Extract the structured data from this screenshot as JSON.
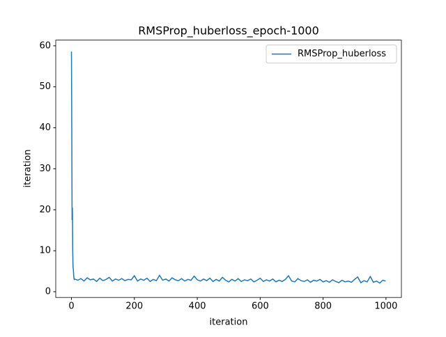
{
  "chart_data": {
    "type": "line",
    "title": "RMSProp_huberloss_epoch-1000",
    "x_label": "iteration",
    "y_label": "iteration",
    "x": [
      0,
      1,
      2,
      3,
      4,
      5,
      6,
      7,
      8,
      9,
      10,
      20,
      30,
      40,
      50,
      60,
      70,
      80,
      90,
      100,
      110,
      120,
      130,
      140,
      150,
      160,
      170,
      180,
      190,
      200,
      210,
      220,
      230,
      240,
      250,
      260,
      270,
      280,
      290,
      300,
      310,
      320,
      330,
      340,
      350,
      360,
      370,
      380,
      390,
      400,
      410,
      420,
      430,
      440,
      450,
      460,
      470,
      480,
      490,
      500,
      510,
      520,
      530,
      540,
      550,
      560,
      570,
      580,
      590,
      600,
      610,
      620,
      630,
      640,
      650,
      660,
      670,
      680,
      690,
      700,
      710,
      720,
      730,
      740,
      750,
      760,
      770,
      780,
      790,
      800,
      810,
      820,
      830,
      840,
      850,
      860,
      870,
      880,
      890,
      900,
      910,
      920,
      930,
      940,
      950,
      960,
      970,
      980,
      990,
      999
    ],
    "series": [
      {
        "name": "RMSProp_huberloss",
        "color": "#1f77b4",
        "values": [
          58.6,
          40,
          17.5,
          20.5,
          10,
          6,
          5.5,
          4,
          3.2,
          3.0,
          3.1,
          2.8,
          3.2,
          2.6,
          3.4,
          2.9,
          3.1,
          2.5,
          3.3,
          2.7,
          3.0,
          3.5,
          2.6,
          3.1,
          2.8,
          3.2,
          2.7,
          3.0,
          2.9,
          3.9,
          2.6,
          3.1,
          2.8,
          3.3,
          2.5,
          3.0,
          2.7,
          4.0,
          2.8,
          3.1,
          2.6,
          3.4,
          2.9,
          2.7,
          3.2,
          2.6,
          3.0,
          2.8,
          3.8,
          2.9,
          2.6,
          3.1,
          2.7,
          3.3,
          2.5,
          3.0,
          2.6,
          3.5,
          2.8,
          2.4,
          3.0,
          2.6,
          3.2,
          2.5,
          2.9,
          2.7,
          3.1,
          2.4,
          2.8,
          3.3,
          2.5,
          2.9,
          2.6,
          3.1,
          2.4,
          2.8,
          2.5,
          3.0,
          3.9,
          2.6,
          2.4,
          3.2,
          2.7,
          2.5,
          2.9,
          2.3,
          2.8,
          2.6,
          3.0,
          2.4,
          2.7,
          2.3,
          2.9,
          2.5,
          2.2,
          2.8,
          2.4,
          2.6,
          2.3,
          3.0,
          3.6,
          2.2,
          2.7,
          2.4,
          3.7,
          2.3,
          2.6,
          2.1,
          2.8,
          2.6
        ]
      }
    ],
    "xlim": [
      -49.95,
      1048.95
    ],
    "ylim": [
      -1.4,
      61.4
    ],
    "xticks": [
      0,
      200,
      400,
      600,
      800,
      1000
    ],
    "yticks": [
      0,
      10,
      20,
      30,
      40,
      50,
      60
    ],
    "legend": "upper right"
  }
}
